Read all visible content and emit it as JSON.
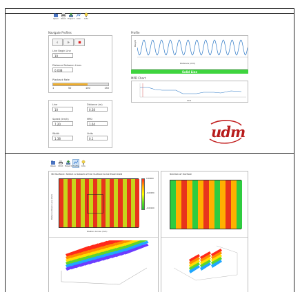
{
  "toolbar_top": [
    {
      "label": "Open",
      "icon": "open-icon"
    },
    {
      "label": "Print",
      "icon": "print-icon"
    },
    {
      "label": "Export",
      "icon": "export-icon"
    },
    {
      "label": "Info",
      "icon": "info-icon"
    },
    {
      "label": "Info",
      "icon": "lightbulb-icon"
    }
  ],
  "toolbar_bottom": [
    {
      "label": "Open",
      "icon": "open-icon"
    },
    {
      "label": "Print",
      "icon": "print-icon"
    },
    {
      "label": "Export",
      "icon": "export-icon"
    },
    {
      "label": "Profile",
      "icon": "profile-icon"
    },
    {
      "label": "Info",
      "icon": "lightbulb-icon"
    }
  ],
  "navigate_profiles": {
    "title": "Navigate Profiles",
    "line_label": "Line Begin Line",
    "line_value": "10",
    "distance_label": "Distance Between Lines",
    "distance_value": "0.038",
    "playback_label": "Playback Rate",
    "playback_ticks": [
      "1",
      "50",
      "100",
      "150"
    ],
    "playback_fraction": 0.62
  },
  "profile_chart": {
    "title": "Profile",
    "ylabel": "Height",
    "xlabel": "Distance (mm)",
    "status": "Solid Line",
    "status_color": "#3ed43e"
  },
  "mpd_chart": {
    "title": "MPD Chart",
    "xlabel": "Line"
  },
  "info_fields": [
    {
      "label": "Line",
      "value": "10"
    },
    {
      "label": "Distance (m)",
      "value": "0.38"
    },
    {
      "label": "Speed (km/h)",
      "value": "7.20"
    },
    {
      "label": "MPD",
      "value": "1.04"
    },
    {
      "label": "Width",
      "value": "1.38"
    },
    {
      "label": "Units",
      "value": "0.1"
    }
  ],
  "logo_text": "udm",
  "surface_left": {
    "title": "3D Surface: Select a Subset of the Surface to be Examined",
    "ylabel": "Distance Down Lane (mm)",
    "xlabel": "Position Across (mm)",
    "scale_labels": [
      "0.00000",
      "-0.00050",
      "-0.00100"
    ]
  },
  "surface_right": {
    "title": "Section of Surface"
  }
}
